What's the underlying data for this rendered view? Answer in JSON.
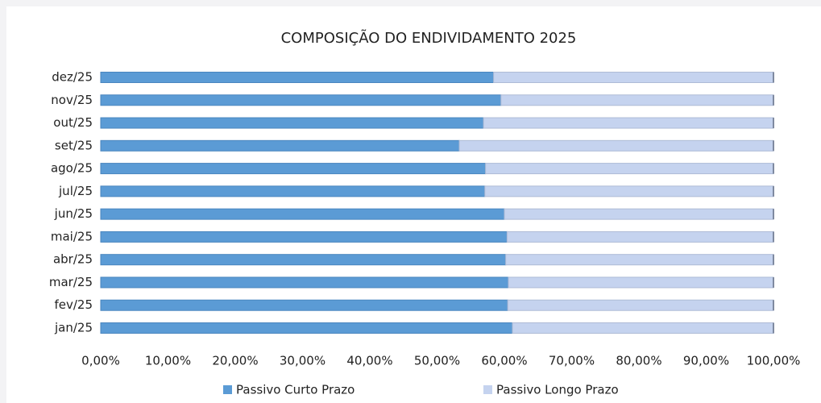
{
  "chart_data": {
    "type": "stacked_bar_horizontal",
    "title": "COMPOSIÇÃO DO ENDIVIDAMENTO 2025",
    "categories": [
      "jan/25",
      "fev/25",
      "mar/25",
      "abr/25",
      "mai/25",
      "jun/25",
      "jul/25",
      "ago/25",
      "set/25",
      "out/25",
      "nov/25",
      "dez/25"
    ],
    "series": [
      {
        "name": "Passivo Curto Prazo",
        "color": "#5b9bd5",
        "values": [
          61.2,
          60.5,
          60.6,
          60.2,
          60.4,
          60.0,
          57.1,
          57.2,
          53.3,
          56.9,
          59.5,
          58.4
        ]
      },
      {
        "name": "Passivo Longo Prazo",
        "color": "#c5d3ef",
        "values": [
          38.8,
          39.5,
          39.4,
          39.8,
          39.6,
          40.0,
          42.9,
          42.8,
          46.7,
          43.1,
          40.5,
          41.6
        ]
      }
    ],
    "xlim": [
      0,
      100
    ],
    "xticks": [
      {
        "value": 0,
        "label": "0,00%"
      },
      {
        "value": 10,
        "label": "10,00%"
      },
      {
        "value": 20,
        "label": "20,00%"
      },
      {
        "value": 30,
        "label": "30,00%"
      },
      {
        "value": 40,
        "label": "40,00%"
      },
      {
        "value": 50,
        "label": "50,00%"
      },
      {
        "value": 60,
        "label": "60,00%"
      },
      {
        "value": 70,
        "label": "70,00%"
      },
      {
        "value": 80,
        "label": "80,00%"
      },
      {
        "value": 90,
        "label": "90,00%"
      },
      {
        "value": 100,
        "label": "100,00%"
      }
    ],
    "legend": "bottom"
  }
}
